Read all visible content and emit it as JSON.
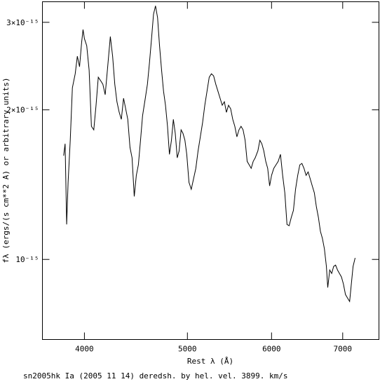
{
  "chart_data": {
    "type": "line",
    "title": "sn2005hk Ia (2005 11 14) deredsh. by hel. vel.  3899. km/s",
    "x_label": "Rest λ (Å)",
    "y_label": "fλ (ergs/(s cm**2 A) or arbitrary units)",
    "x_log": true,
    "y_log": true,
    "xlim": [
      3652,
      7572
    ],
    "ylim": [
      6.9e-16,
      3.3e-15
    ],
    "xticks": [
      4000,
      5000,
      6000,
      7000
    ],
    "yticks": [
      {
        "value": 1e-15,
        "label": "10⁻¹⁵"
      },
      {
        "value": 2e-15,
        "label": "2×10⁻¹⁵"
      },
      {
        "value": 3e-15,
        "label": "3×10⁻¹⁵"
      }
    ],
    "color": "#000000",
    "x": [
      3824,
      3836,
      3849,
      3861,
      3879,
      3897,
      3921,
      3939,
      3958,
      3976,
      3988,
      4000,
      4020,
      4041,
      4061,
      4082,
      4102,
      4122,
      4143,
      4163,
      4184,
      4204,
      4231,
      4252,
      4272,
      4292,
      4313,
      4333,
      4354,
      4374,
      4394,
      4415,
      4435,
      4456,
      4476,
      4496,
      4517,
      4537,
      4564,
      4585,
      4605,
      4626,
      4646,
      4666,
      4687,
      4707,
      4728,
      4748,
      4768,
      4789,
      4809,
      4830,
      4850,
      4870,
      4891,
      4911,
      4932,
      4952,
      4973,
      4993,
      5017,
      5042,
      5067,
      5092,
      5117,
      5142,
      5167,
      5192,
      5217,
      5242,
      5267,
      5292,
      5317,
      5342,
      5367,
      5392,
      5417,
      5441,
      5466,
      5491,
      5516,
      5541,
      5566,
      5591,
      5616,
      5641,
      5666,
      5691,
      5716,
      5741,
      5766,
      5791,
      5825,
      5850,
      5875,
      5900,
      5925,
      5950,
      5975,
      6000,
      6029,
      6058,
      6087,
      6117,
      6146,
      6175,
      6204,
      6233,
      6262,
      6291,
      6320,
      6350,
      6379,
      6408,
      6437,
      6466,
      6495,
      6524,
      6553,
      6583,
      6612,
      6641,
      6670,
      6699,
      6728,
      6757,
      6777,
      6806,
      6835,
      6864,
      6893,
      6922,
      6951,
      6981,
      7011,
      7042,
      7074,
      7106,
      7127,
      7159,
      7191
    ],
    "values": [
      1.617e-15,
      1.709e-15,
      1.176e-15,
      1.429e-15,
      1.737e-15,
      2.215e-15,
      2.364e-15,
      2.564e-15,
      2.442e-15,
      2.735e-15,
      2.901e-15,
      2.781e-15,
      2.692e-15,
      2.403e-15,
      1.853e-15,
      1.823e-15,
      2.043e-15,
      2.326e-15,
      2.289e-15,
      2.252e-15,
      2.145e-15,
      2.403e-15,
      2.808e-15,
      2.564e-15,
      2.252e-15,
      2.076e-15,
      1.977e-15,
      1.914e-15,
      2.11e-15,
      2.01e-15,
      1.914e-15,
      1.681e-15,
      1.601e-15,
      1.339e-15,
      1.476e-15,
      1.55e-15,
      1.737e-15,
      1.946e-15,
      2.11e-15,
      2.252e-15,
      2.482e-15,
      2.781e-15,
      3.115e-15,
      3.238e-15,
      3.066e-15,
      2.692e-15,
      2.403e-15,
      2.18e-15,
      2.043e-15,
      1.853e-15,
      1.627e-15,
      1.737e-15,
      1.914e-15,
      1.794e-15,
      1.601e-15,
      1.654e-15,
      1.823e-15,
      1.794e-15,
      1.737e-15,
      1.627e-15,
      1.429e-15,
      1.384e-15,
      1.453e-15,
      1.525e-15,
      1.654e-15,
      1.765e-15,
      1.884e-15,
      2.043e-15,
      2.18e-15,
      2.326e-15,
      2.364e-15,
      2.341e-15,
      2.252e-15,
      2.18e-15,
      2.11e-15,
      2.043e-15,
      2.076e-15,
      1.977e-15,
      2.043e-15,
      2.01e-15,
      1.914e-15,
      1.853e-15,
      1.765e-15,
      1.823e-15,
      1.853e-15,
      1.823e-15,
      1.737e-15,
      1.575e-15,
      1.55e-15,
      1.525e-15,
      1.575e-15,
      1.601e-15,
      1.654e-15,
      1.737e-15,
      1.709e-15,
      1.654e-15,
      1.575e-15,
      1.525e-15,
      1.406e-15,
      1.476e-15,
      1.525e-15,
      1.55e-15,
      1.575e-15,
      1.627e-15,
      1.476e-15,
      1.361e-15,
      1.176e-15,
      1.169e-15,
      1.215e-15,
      1.255e-15,
      1.384e-15,
      1.476e-15,
      1.55e-15,
      1.56e-15,
      1.525e-15,
      1.476e-15,
      1.5e-15,
      1.453e-15,
      1.406e-15,
      1.361e-15,
      1.276e-15,
      1.215e-15,
      1.139e-15,
      1.102e-15,
      1.05e-15,
      9.68e-16,
      8.78e-16,
      9.52e-16,
      9.37e-16,
      9.68e-16,
      9.74e-16,
      9.52e-16,
      9.37e-16,
      9.22e-16,
      8.92e-16,
      8.5e-16,
      8.36e-16,
      8.23e-16,
      8.78e-16,
      9.68e-16,
      1.007e-15
    ]
  }
}
